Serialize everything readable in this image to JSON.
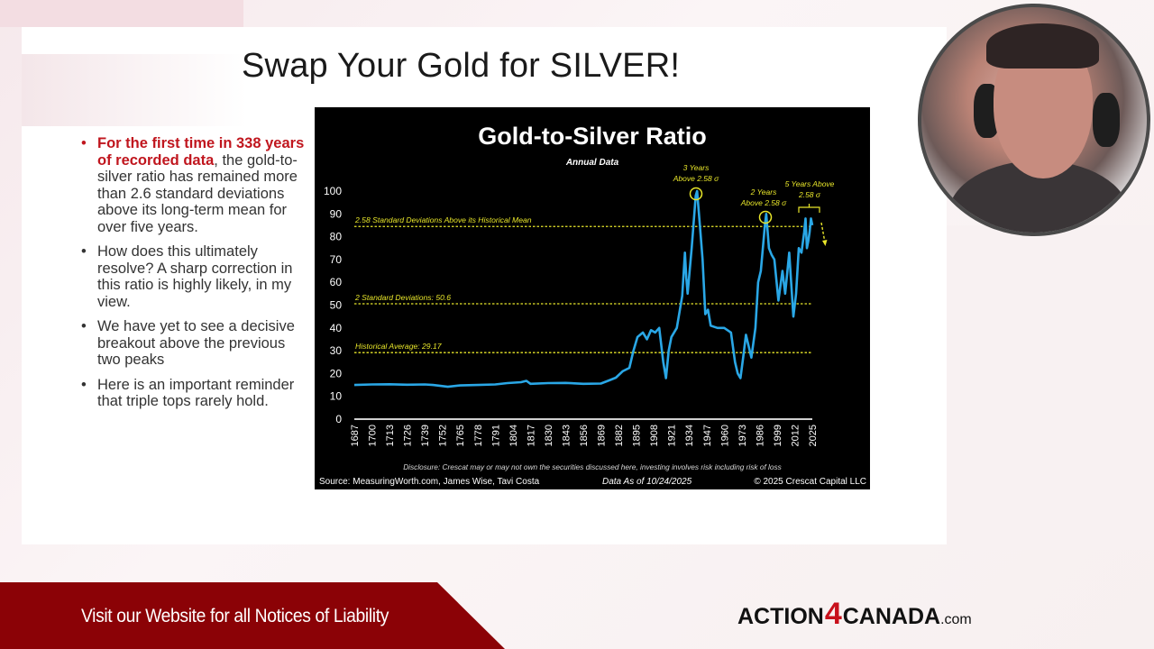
{
  "slide": {
    "title": "Swap Your Gold for SILVER!",
    "bullets": [
      {
        "highlight": "For the first time in 338 years of recorded data",
        "text": ", the gold-to-silver ratio has remained more than 2.6 standard deviations above its long-term mean for over five years."
      },
      {
        "highlight": "",
        "text": "How does this ultimately resolve?   A sharp correction in this ratio is highly likely, in my view."
      },
      {
        "highlight": "",
        "text": "We have yet to see a decisive breakout above the previous two peaks"
      },
      {
        "highlight": "",
        "text": "Here is an important reminder that triple tops rarely hold."
      }
    ]
  },
  "chart": {
    "title": "Gold-to-Silver Ratio",
    "subtitle": "Annual Data",
    "disclosure": "Disclosure: Crescat may or may not own the securities discussed here, investing involves risk including risk of loss",
    "source": "Source: MeasuringWorth.com, James Wise, Tavi Costa",
    "data_as_of": "Data As of 10/24/2025",
    "copyright": "© 2025 Crescat Capital LLC",
    "ref_lines": [
      {
        "label": "2.58 Standard Deviations Above its Historical Mean",
        "value": 84.5
      },
      {
        "label": "2 Standard Deviations: 50.6",
        "value": 50.6
      },
      {
        "label": "Historical Average: 29.17",
        "value": 29.17
      }
    ],
    "annotations": [
      {
        "line1": "3 Years",
        "line2": "Above 2.58 σ"
      },
      {
        "line1": "2 Years",
        "line2": "Above 2.58 σ"
      },
      {
        "line1": "5 Years Above",
        "line2": "2.58 σ"
      }
    ],
    "colors": {
      "line": "#2aa7e6",
      "ref": "#e8e62a",
      "bg": "#000000"
    }
  },
  "chart_data": {
    "type": "line",
    "title": "Gold-to-Silver Ratio",
    "subtitle": "Annual Data",
    "xlabel": "",
    "ylabel": "",
    "ylim": [
      0,
      100
    ],
    "yticks": [
      0,
      10,
      20,
      30,
      40,
      50,
      60,
      70,
      80,
      90,
      100
    ],
    "xticks": [
      "1687",
      "1700",
      "1713",
      "1726",
      "1739",
      "1752",
      "1765",
      "1778",
      "1791",
      "1804",
      "1817",
      "1830",
      "1843",
      "1856",
      "1869",
      "1882",
      "1895",
      "1908",
      "1921",
      "1934",
      "1947",
      "1960",
      "1973",
      "1986",
      "1999",
      "2012",
      "2025"
    ],
    "grid": false,
    "series": [
      {
        "name": "Gold-to-Silver Ratio",
        "x": [
          1687,
          1700,
          1713,
          1726,
          1739,
          1745,
          1752,
          1756,
          1765,
          1778,
          1791,
          1800,
          1810,
          1814,
          1817,
          1830,
          1843,
          1856,
          1869,
          1875,
          1880,
          1885,
          1890,
          1893,
          1896,
          1900,
          1903,
          1906,
          1909,
          1912,
          1915,
          1917,
          1919,
          1921,
          1925,
          1929,
          1931,
          1932,
          1933,
          1936,
          1939,
          1940,
          1942,
          1944,
          1946,
          1948,
          1950,
          1955,
          1960,
          1965,
          1968,
          1970,
          1972,
          1974,
          1976,
          1978,
          1980,
          1983,
          1985,
          1987,
          1990,
          1991,
          1993,
          1995,
          1997,
          2000,
          2003,
          2005,
          2008,
          2011,
          2013,
          2015,
          2017,
          2019,
          2020,
          2021,
          2022,
          2023,
          2024,
          2025
        ],
        "values": [
          15,
          15.2,
          15.3,
          15.1,
          15.2,
          15.0,
          14.5,
          14.2,
          14.8,
          15,
          15.2,
          15.8,
          16.2,
          16.8,
          15.5,
          15.8,
          15.9,
          15.5,
          15.6,
          17,
          18.2,
          21,
          22.5,
          30,
          36,
          38,
          35,
          39,
          38,
          40,
          25,
          18,
          30,
          36,
          40,
          54,
          73,
          62,
          55,
          75,
          98,
          100,
          85,
          70,
          46,
          48,
          41,
          40,
          40,
          38,
          25,
          20,
          18,
          27,
          37,
          32,
          27,
          40,
          60,
          65,
          85,
          90,
          75,
          72,
          70,
          52,
          65,
          55,
          73,
          45,
          55,
          75,
          73,
          82,
          88,
          75,
          78,
          82,
          88,
          85
        ]
      }
    ],
    "reference_lines": [
      {
        "label": "2.58 Standard Deviations Above its Historical Mean",
        "value": 84.5
      },
      {
        "label": "2 Standard Deviations: 50.6",
        "value": 50.6
      },
      {
        "label": "Historical Average: 29.17",
        "value": 29.17
      }
    ],
    "annotations": [
      "3 Years Above 2.58 σ",
      "2 Years Above 2.58 σ",
      "5 Years Above 2.58 σ"
    ],
    "source": "Source: MeasuringWorth.com, James Wise, Tavi Costa",
    "data_as_of": "Data As of 10/24/2025",
    "copyright": "© 2025 Crescat Capital LLC"
  },
  "footer": {
    "notice": "Visit our Website for all Notices of Liability",
    "logo_left": "ACTION",
    "logo_num": "4",
    "logo_right": "CANADA",
    "logo_suffix": ".com"
  },
  "webcam": {
    "label": "presenter-video"
  }
}
